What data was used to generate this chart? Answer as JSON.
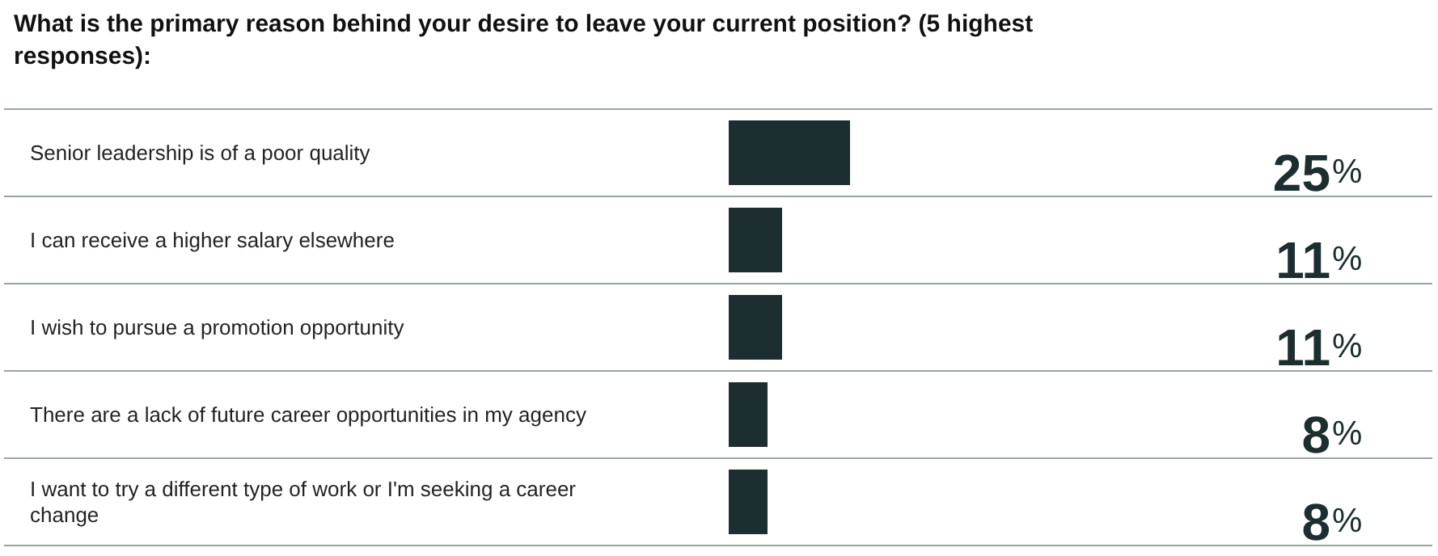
{
  "chart_data": {
    "type": "bar",
    "orientation": "horizontal",
    "title": "What is the primary reason behind your desire to leave your current position? (5 highest responses):",
    "categories": [
      "Senior leadership is of a poor quality",
      "I can receive a higher salary elsewhere",
      "I wish to pursue a promotion opportunity",
      "There are a lack of future career opportunities in my agency",
      "I want to try a different type of work or I'm seeking a career change"
    ],
    "values": [
      25,
      11,
      11,
      8,
      8
    ],
    "color": "#1d2e30",
    "value_labels": [
      "25%",
      "11%",
      "11%",
      "8%",
      "8%"
    ]
  }
}
